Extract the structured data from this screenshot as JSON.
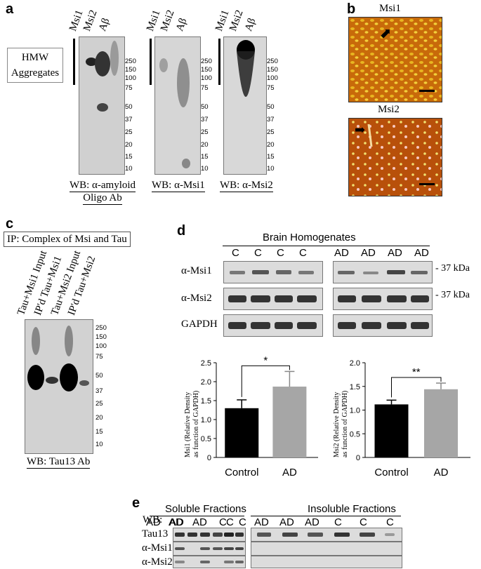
{
  "panels": {
    "a": {
      "letter": "a",
      "hmw_label_line1": "HMW",
      "hmw_label_line2": "Aggregates",
      "lanes": [
        "Msi1",
        "Msi2",
        "Aβ"
      ],
      "mw_markers": [
        "250",
        "150",
        "100",
        "75",
        "50",
        "37",
        "25",
        "20",
        "15",
        "10"
      ],
      "blot1_caption_line1": "WB: α-amyloid",
      "blot1_caption_line2": "Oligo Ab",
      "blot2_caption": "WB: α-Msi1",
      "blot3_caption": "WB: α-Msi2"
    },
    "b": {
      "letter": "b",
      "top_label": "Msi1",
      "bottom_label": "Msi2"
    },
    "c": {
      "letter": "c",
      "title": "IP: Complex of Msi and Tau",
      "lanes": [
        "Tau+Msi1 Input",
        "IP'd Tau+Msi1",
        "Tau+Msi2 Input",
        "IP'd Tau+Msi2"
      ],
      "mw_markers": [
        "250",
        "150",
        "100",
        "75",
        "50",
        "37",
        "25",
        "20",
        "15",
        "10"
      ],
      "caption": "WB: Tau13 Ab"
    },
    "d": {
      "letter": "d",
      "header": "Brain Homogenates",
      "lanes_control": [
        "C",
        "C",
        "C",
        "C"
      ],
      "lanes_ad": [
        "AD",
        "AD",
        "AD",
        "AD"
      ],
      "rows": [
        "α-Msi1",
        "α-Msi2",
        "GAPDH"
      ],
      "kda_label": "- 37 kDa"
    },
    "e": {
      "letter": "e",
      "soluble_header": "Soluble Fractions",
      "insoluble_header": "Insoluble Fractions",
      "wb_label": "WB:",
      "soluble_lanes": [
        "AD",
        "AD",
        "AD",
        "C",
        "C",
        "C"
      ],
      "insoluble_lanes": [
        "AD",
        "AD",
        "AD",
        "C",
        "C",
        "C"
      ],
      "rows": [
        "Tau13",
        "α-Msi1",
        "α-Msi2"
      ]
    }
  },
  "chart_data": [
    {
      "type": "bar",
      "categories": [
        "Control",
        "AD"
      ],
      "values": [
        1.3,
        1.87
      ],
      "errors": [
        0.22,
        0.4
      ],
      "ylabel": "Msi1 (Relative Density as function of GAPDH)",
      "yticks": [
        "0",
        "0.5",
        "1.0",
        "1.5",
        "2.0",
        "2.5"
      ],
      "ylim": [
        0,
        2.5
      ],
      "significance": "*",
      "colors": [
        "#000000",
        "#a6a6a6"
      ]
    },
    {
      "type": "bar",
      "categories": [
        "Control",
        "AD"
      ],
      "values": [
        1.12,
        1.44
      ],
      "errors": [
        0.09,
        0.13
      ],
      "ylabel": "Msi2 (Relative Density as function of GAPDH)",
      "yticks": [
        "0",
        "0.5",
        "1.0",
        "1.5",
        "2.0"
      ],
      "ylim": [
        0,
        2.0
      ],
      "significance": "**",
      "colors": [
        "#000000",
        "#a6a6a6"
      ]
    }
  ]
}
